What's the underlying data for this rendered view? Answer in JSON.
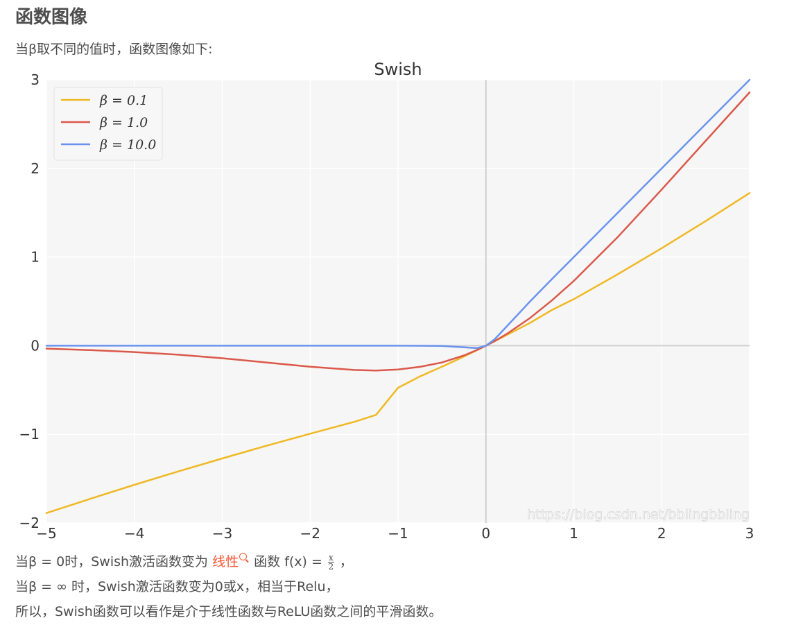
{
  "section_heading": "函数图像",
  "intro_text": "当β取不同的值时，函数图像如下:",
  "chart_data": {
    "type": "line",
    "title": "Swish",
    "xlabel": "",
    "ylabel": "",
    "xlim": [
      -5,
      3
    ],
    "ylim": [
      -2,
      3
    ],
    "x_ticks": [
      -5,
      -4,
      -3,
      -2,
      -1,
      0,
      1,
      2,
      3
    ],
    "x_tick_labels": [
      "−5",
      "−4",
      "−3",
      "−2",
      "−1",
      "0",
      "1",
      "2",
      "3"
    ],
    "y_ticks": [
      -2,
      -1,
      0,
      1,
      2,
      3
    ],
    "y_tick_labels": [
      "−2",
      "−1",
      "0",
      "1",
      "2",
      "3"
    ],
    "grid": true,
    "legend_position": "top-left",
    "x": [
      -5,
      -4.5,
      -4,
      -3.5,
      -3,
      -2.5,
      -2,
      -1.5,
      -1.25,
      -1,
      -0.75,
      -0.5,
      -0.25,
      -0.1,
      0,
      0.1,
      0.25,
      0.5,
      0.75,
      1,
      1.5,
      2,
      2.5,
      3
    ],
    "series": [
      {
        "name": "β = 0.1",
        "color": "#f0b823",
        "values": [
          -1.888,
          -1.727,
          -1.57,
          -1.419,
          -1.272,
          -1.13,
          -0.993,
          -0.86,
          -0.781,
          -0.475,
          -0.347,
          -0.237,
          -0.122,
          -0.049,
          0,
          0.05,
          0.127,
          0.256,
          0.402,
          0.525,
          0.806,
          1.1,
          1.405,
          1.722
        ]
      },
      {
        "name": "β = 1.0",
        "color": "#db5849",
        "values": [
          -0.033,
          -0.05,
          -0.072,
          -0.102,
          -0.142,
          -0.189,
          -0.238,
          -0.274,
          -0.28,
          -0.269,
          -0.239,
          -0.189,
          -0.11,
          -0.048,
          0,
          0.052,
          0.141,
          0.311,
          0.51,
          0.731,
          1.226,
          1.762,
          2.311,
          2.858
        ]
      },
      {
        "name": "β = 10.0",
        "color": "#6a93f0",
        "values": [
          0,
          0,
          0,
          0,
          0,
          0,
          0,
          0,
          0,
          0,
          -0.0004,
          -0.003,
          -0.019,
          -0.027,
          0,
          0.073,
          0.231,
          0.497,
          0.75,
          1.0,
          1.5,
          2.0,
          2.5,
          3.0
        ]
      }
    ]
  },
  "watermark": "https://blog.csdn.net/bblingbbling",
  "para1": {
    "prefix": "当β = 0时，Swish激活函数变为",
    "link_text": "线性",
    "middle": "函数 f(x) = ",
    "frac_num": "x",
    "frac_den": "2",
    "suffix": "，"
  },
  "para2": "当β = ∞ 时，Swish激活函数变为0或x，相当于Relu，",
  "para3": "所以，Swish函数可以看作是介于线性函数与ReLU函数之间的平滑函数。",
  "colors": {
    "plot_bg": "#f6f6f6",
    "link": "#fc5531"
  }
}
